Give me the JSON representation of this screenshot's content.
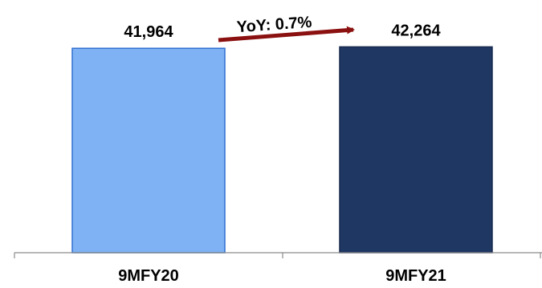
{
  "chart_data": {
    "type": "bar",
    "categories": [
      "9MFY20",
      "9MFY21"
    ],
    "values": [
      41964,
      42264
    ],
    "value_labels": [
      "41,964",
      "42,264"
    ],
    "ylim": [
      0,
      45000
    ],
    "grid": false,
    "legend": "none",
    "annotation": "YoY: 0.7%",
    "colors": {
      "bar_9MFY20": "#7fb2f4",
      "bar_9MFY21": "#1f3763",
      "bar_outline_9MFY20": "#2f6fd0",
      "bar_outline_9MFY21": "#16294d",
      "annotation_arrow": "#8b1111",
      "axis": "#8c8c8c",
      "text": "#000000"
    }
  }
}
